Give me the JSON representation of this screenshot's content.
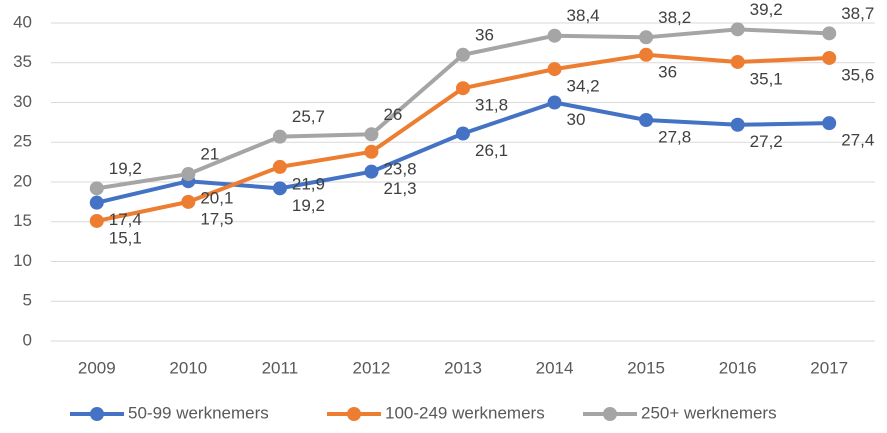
{
  "chart_data": {
    "type": "line",
    "categories": [
      "2009",
      "2010",
      "2011",
      "2012",
      "2013",
      "2014",
      "2015",
      "2016",
      "2017"
    ],
    "series": [
      {
        "name": "50-99 werknemers",
        "color": "#4472c4",
        "values": [
          17.4,
          20.1,
          19.2,
          21.3,
          26.1,
          30,
          27.8,
          27.2,
          27.4
        ],
        "value_labels": [
          "17,4",
          "20,1",
          "19,2",
          "21,3",
          "26,1",
          "30",
          "27,8",
          "27,2",
          "27,4"
        ]
      },
      {
        "name": "100-249 werknemers",
        "color": "#ed7d31",
        "values": [
          15.1,
          17.5,
          21.9,
          23.8,
          31.8,
          34.2,
          36,
          35.1,
          35.6
        ],
        "value_labels": [
          "15,1",
          "17,5",
          "21,9",
          "23,8",
          "31,8",
          "34,2",
          "36",
          "35,1",
          "35,6"
        ]
      },
      {
        "name": "250+ werknemers",
        "color": "#a5a5a5",
        "values": [
          19.2,
          21,
          25.7,
          26,
          36,
          38.4,
          38.2,
          39.2,
          38.7
        ],
        "value_labels": [
          "19,2",
          "21",
          "25,7",
          "26",
          "36",
          "38,4",
          "38,2",
          "39,2",
          "38,7"
        ]
      }
    ],
    "ylim": [
      0,
      40
    ],
    "yticks": [
      0,
      5,
      10,
      15,
      20,
      25,
      30,
      35,
      40
    ],
    "grid": true,
    "legend": "bottom"
  }
}
